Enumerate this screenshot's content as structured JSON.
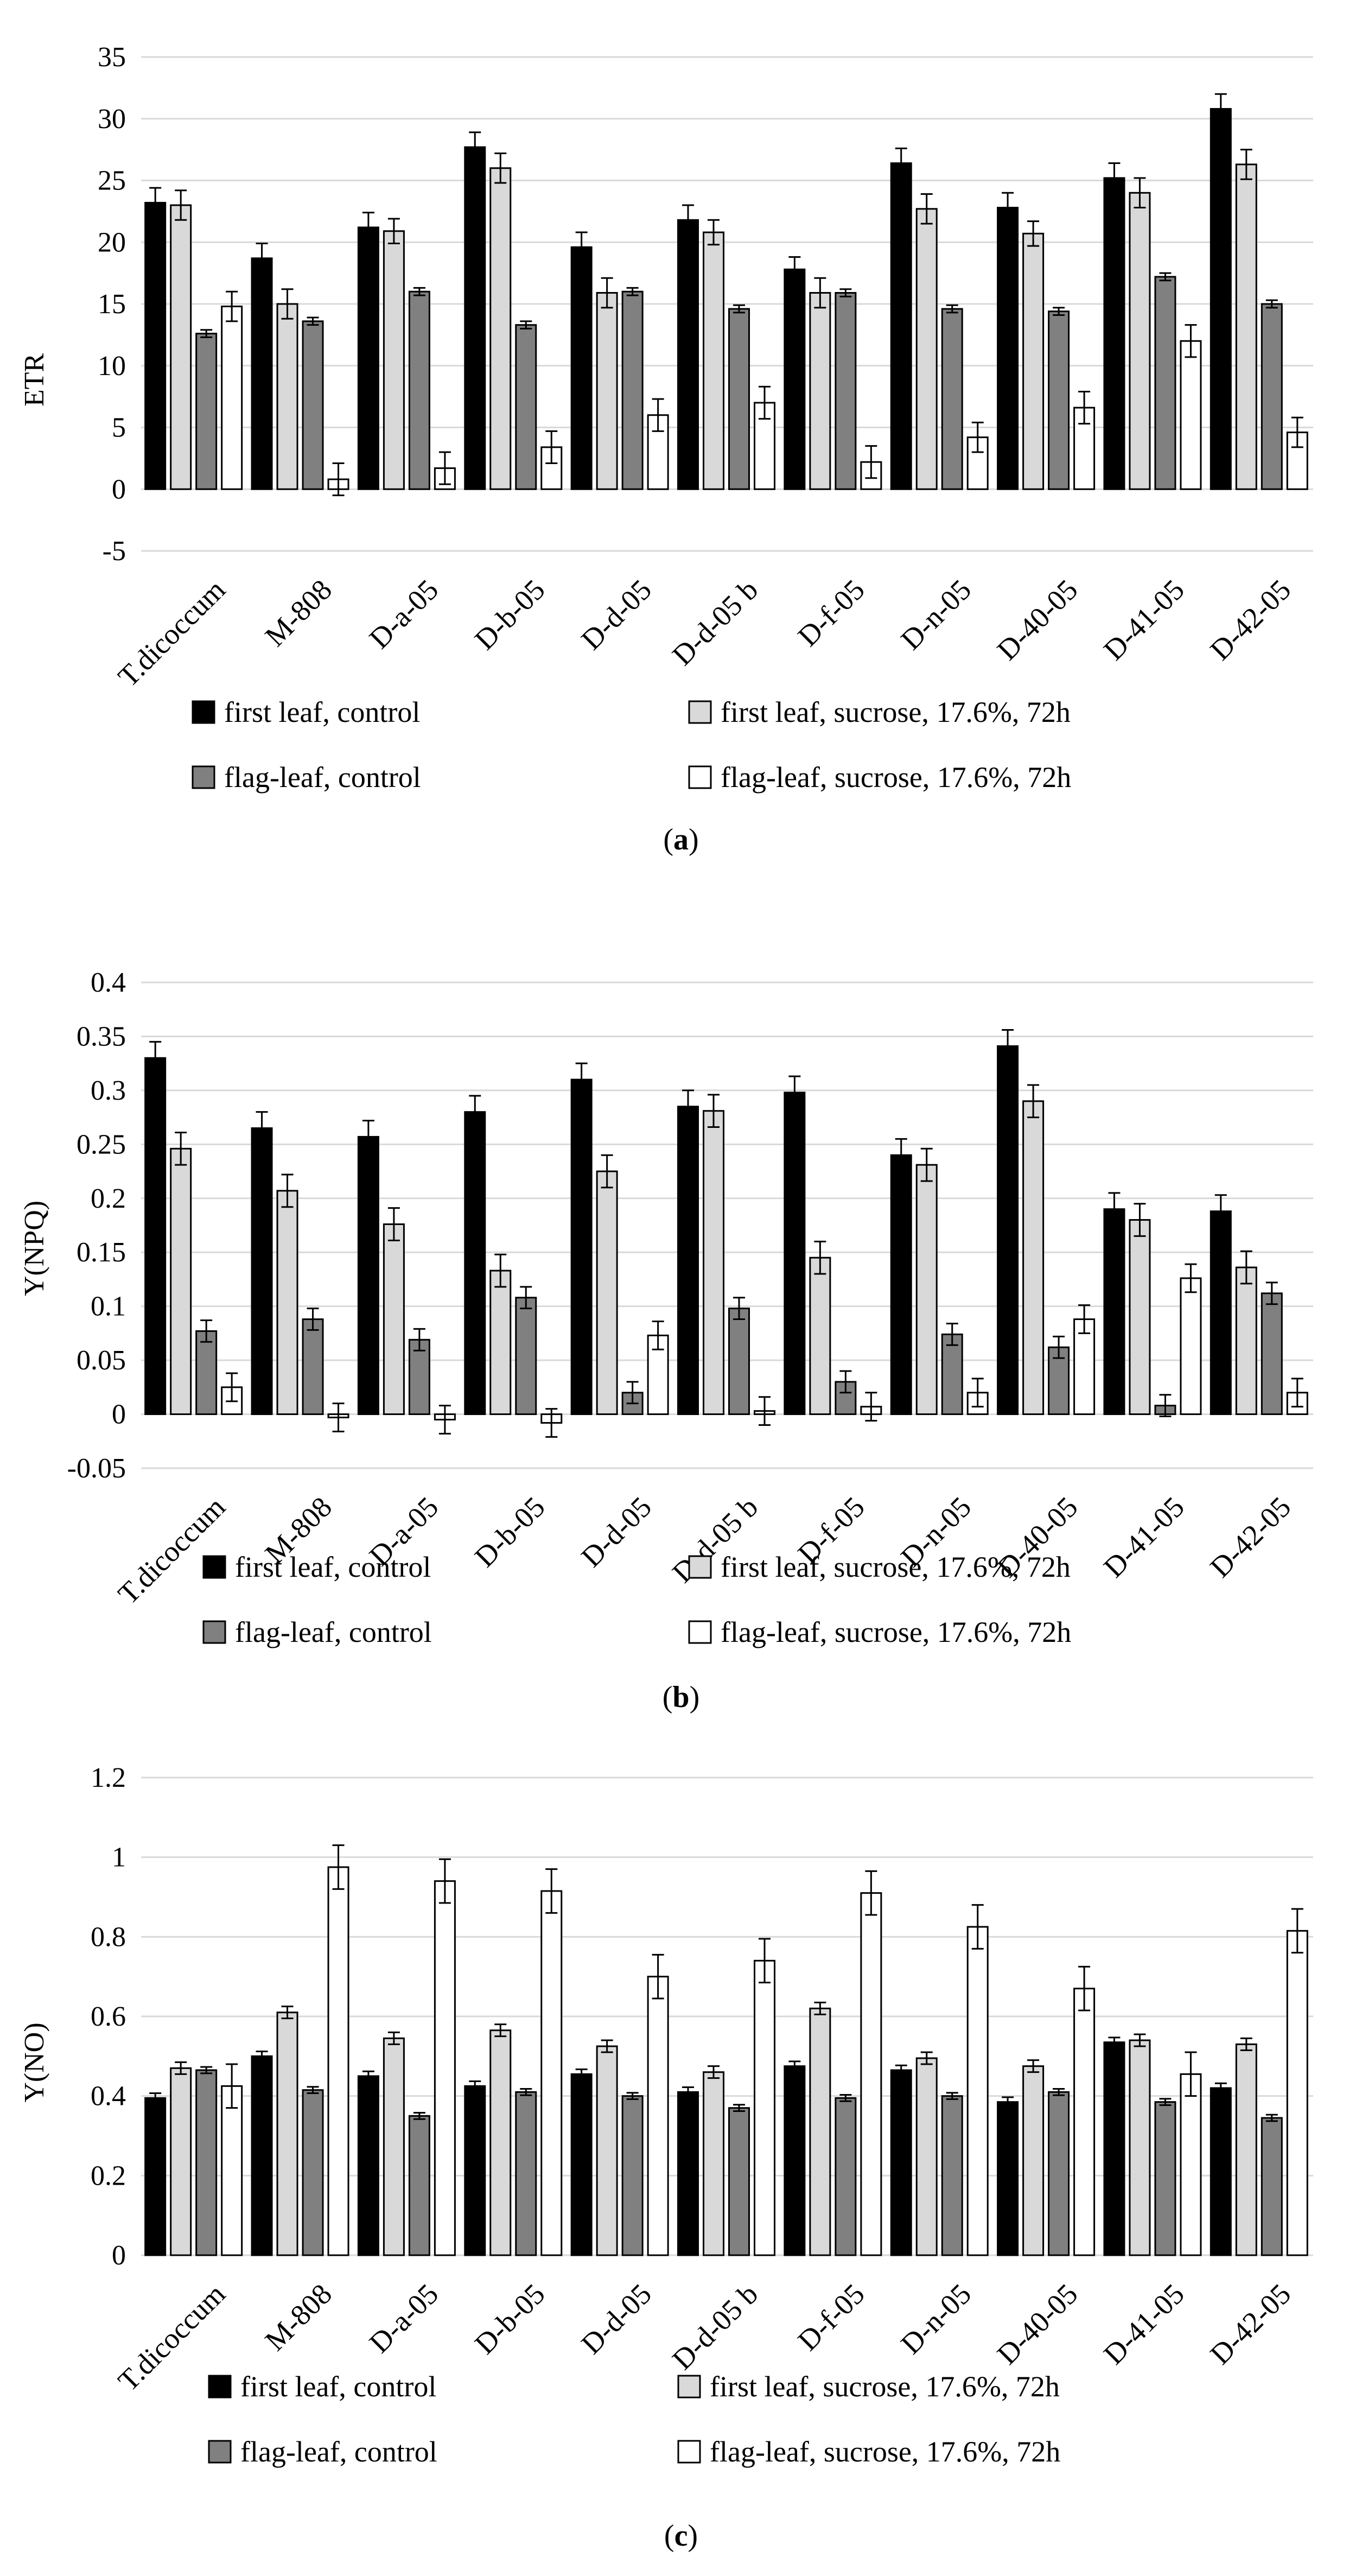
{
  "chart_data": [
    {
      "type": "bar",
      "panel_label": "a",
      "ylabel": "ETR",
      "ylim": [
        -5,
        35
      ],
      "yticks": [
        -5,
        0,
        5,
        10,
        15,
        20,
        25,
        30,
        35
      ],
      "ytick_labels": [
        "-5",
        "0",
        "5",
        "10",
        "15",
        "20",
        "25",
        "30",
        "35"
      ],
      "grid": true,
      "legend_position": "bottom",
      "categories": [
        "T.dicoccum",
        "M-808",
        "D-a-05",
        "D-b-05",
        "D-d-05",
        "D-d-05 b",
        "D-f-05",
        "D-n-05",
        "D-40-05",
        "D-41-05",
        "D-42-05"
      ],
      "series": [
        {
          "name": "first leaf, control",
          "color": "#000000",
          "values": [
            23.2,
            18.7,
            21.2,
            27.7,
            19.6,
            21.8,
            17.8,
            26.4,
            22.8,
            25.2,
            30.8
          ],
          "errors": [
            1.2,
            1.2,
            1.2,
            1.2,
            1.2,
            1.2,
            1.0,
            1.2,
            1.2,
            1.2,
            1.2
          ]
        },
        {
          "name": "first leaf, sucrose, 17.6%, 72h",
          "color": "#d9d9d9",
          "values": [
            23.0,
            15.0,
            20.9,
            26.0,
            15.9,
            20.8,
            15.9,
            22.7,
            20.7,
            24.0,
            26.3
          ],
          "errors": [
            1.2,
            1.2,
            1.0,
            1.2,
            1.2,
            1.0,
            1.2,
            1.2,
            1.0,
            1.2,
            1.2
          ]
        },
        {
          "name": "flag-leaf, control",
          "color": "#808080",
          "values": [
            12.6,
            13.6,
            16.0,
            13.3,
            16.0,
            14.6,
            15.9,
            14.6,
            14.4,
            17.2,
            15.0
          ],
          "errors": [
            0.3,
            0.3,
            0.3,
            0.3,
            0.3,
            0.3,
            0.3,
            0.3,
            0.3,
            0.3,
            0.3
          ]
        },
        {
          "name": "flag-leaf, sucrose, 17.6%, 72h",
          "color": "#ffffff",
          "values": [
            14.8,
            0.8,
            1.7,
            3.4,
            6.0,
            7.0,
            2.2,
            4.2,
            6.6,
            12.0,
            4.6
          ],
          "errors": [
            1.2,
            1.3,
            1.3,
            1.3,
            1.3,
            1.3,
            1.3,
            1.2,
            1.3,
            1.3,
            1.2
          ]
        }
      ]
    },
    {
      "type": "bar",
      "panel_label": "b",
      "ylabel": "Y(NPQ)",
      "ylim": [
        -0.05,
        0.4
      ],
      "yticks": [
        -0.05,
        0,
        0.05,
        0.1,
        0.15,
        0.2,
        0.25,
        0.3,
        0.35,
        0.4
      ],
      "ytick_labels": [
        "-0.05",
        "0",
        "0.05",
        "0.1",
        "0.15",
        "0.2",
        "0.25",
        "0.3",
        "0.35",
        "0.4"
      ],
      "grid": true,
      "legend_position": "bottom",
      "categories": [
        "T.dicoccum",
        "M-808",
        "D-a-05",
        "D-b-05",
        "D-d-05",
        "D-d-05 b",
        "D-f-05",
        "D-n-05",
        "D-40-05",
        "D-41-05",
        "D-42-05"
      ],
      "series": [
        {
          "name": "first leaf, control",
          "color": "#000000",
          "values": [
            0.33,
            0.265,
            0.257,
            0.28,
            0.31,
            0.285,
            0.298,
            0.24,
            0.341,
            0.19,
            0.188
          ],
          "errors": [
            0.015,
            0.015,
            0.015,
            0.015,
            0.015,
            0.015,
            0.015,
            0.015,
            0.015,
            0.015,
            0.015
          ]
        },
        {
          "name": "first leaf, sucrose, 17.6%, 72h",
          "color": "#d9d9d9",
          "values": [
            0.246,
            0.207,
            0.176,
            0.133,
            0.225,
            0.281,
            0.145,
            0.231,
            0.29,
            0.18,
            0.136
          ],
          "errors": [
            0.015,
            0.015,
            0.015,
            0.015,
            0.015,
            0.015,
            0.015,
            0.015,
            0.015,
            0.015,
            0.015
          ]
        },
        {
          "name": "flag-leaf, control",
          "color": "#808080",
          "values": [
            0.077,
            0.088,
            0.069,
            0.108,
            0.02,
            0.098,
            0.03,
            0.074,
            0.062,
            0.008,
            0.112
          ],
          "errors": [
            0.01,
            0.01,
            0.01,
            0.01,
            0.01,
            0.01,
            0.01,
            0.01,
            0.01,
            0.01,
            0.01
          ]
        },
        {
          "name": "flag-leaf, sucrose, 17.6%, 72h",
          "color": "#ffffff",
          "values": [
            0.025,
            -0.003,
            -0.005,
            -0.008,
            0.073,
            0.003,
            0.007,
            0.02,
            0.088,
            0.126,
            0.02
          ],
          "errors": [
            0.013,
            0.013,
            0.013,
            0.013,
            0.013,
            0.013,
            0.013,
            0.013,
            0.013,
            0.013,
            0.013
          ]
        }
      ]
    },
    {
      "type": "bar",
      "panel_label": "c",
      "ylabel": "Y(NO)",
      "ylim": [
        0,
        1.2
      ],
      "yticks": [
        0,
        0.2,
        0.4,
        0.6,
        0.8,
        1,
        1.2
      ],
      "ytick_labels": [
        "0",
        "0.2",
        "0.4",
        "0.6",
        "0.8",
        "1",
        "1.2"
      ],
      "grid": true,
      "legend_position": "bottom",
      "categories": [
        "T.dicoccum",
        "M-808",
        "D-a-05",
        "D-b-05",
        "D-d-05",
        "D-d-05 b",
        "D-f-05",
        "D-n-05",
        "D-40-05",
        "D-41-05",
        "D-42-05"
      ],
      "series": [
        {
          "name": "first leaf, control",
          "color": "#000000",
          "values": [
            0.395,
            0.5,
            0.45,
            0.425,
            0.455,
            0.41,
            0.475,
            0.465,
            0.385,
            0.535,
            0.42
          ],
          "errors": [
            0.012,
            0.012,
            0.012,
            0.012,
            0.012,
            0.012,
            0.012,
            0.012,
            0.012,
            0.012,
            0.012
          ]
        },
        {
          "name": "first leaf, sucrose, 17.6%, 72h",
          "color": "#d9d9d9",
          "values": [
            0.47,
            0.61,
            0.545,
            0.565,
            0.525,
            0.46,
            0.62,
            0.495,
            0.475,
            0.54,
            0.53
          ],
          "errors": [
            0.015,
            0.015,
            0.015,
            0.015,
            0.015,
            0.015,
            0.015,
            0.015,
            0.015,
            0.015,
            0.015
          ]
        },
        {
          "name": "flag-leaf, control",
          "color": "#808080",
          "values": [
            0.465,
            0.415,
            0.35,
            0.41,
            0.4,
            0.37,
            0.395,
            0.4,
            0.41,
            0.385,
            0.345
          ],
          "errors": [
            0.008,
            0.008,
            0.008,
            0.008,
            0.008,
            0.008,
            0.008,
            0.008,
            0.008,
            0.008,
            0.008
          ]
        },
        {
          "name": "flag-leaf, sucrose, 17.6%, 72h",
          "color": "#ffffff",
          "values": [
            0.425,
            0.975,
            0.94,
            0.915,
            0.7,
            0.74,
            0.91,
            0.825,
            0.67,
            0.455,
            0.815
          ],
          "errors": [
            0.055,
            0.055,
            0.055,
            0.055,
            0.055,
            0.055,
            0.055,
            0.055,
            0.055,
            0.055,
            0.055
          ]
        }
      ]
    }
  ]
}
